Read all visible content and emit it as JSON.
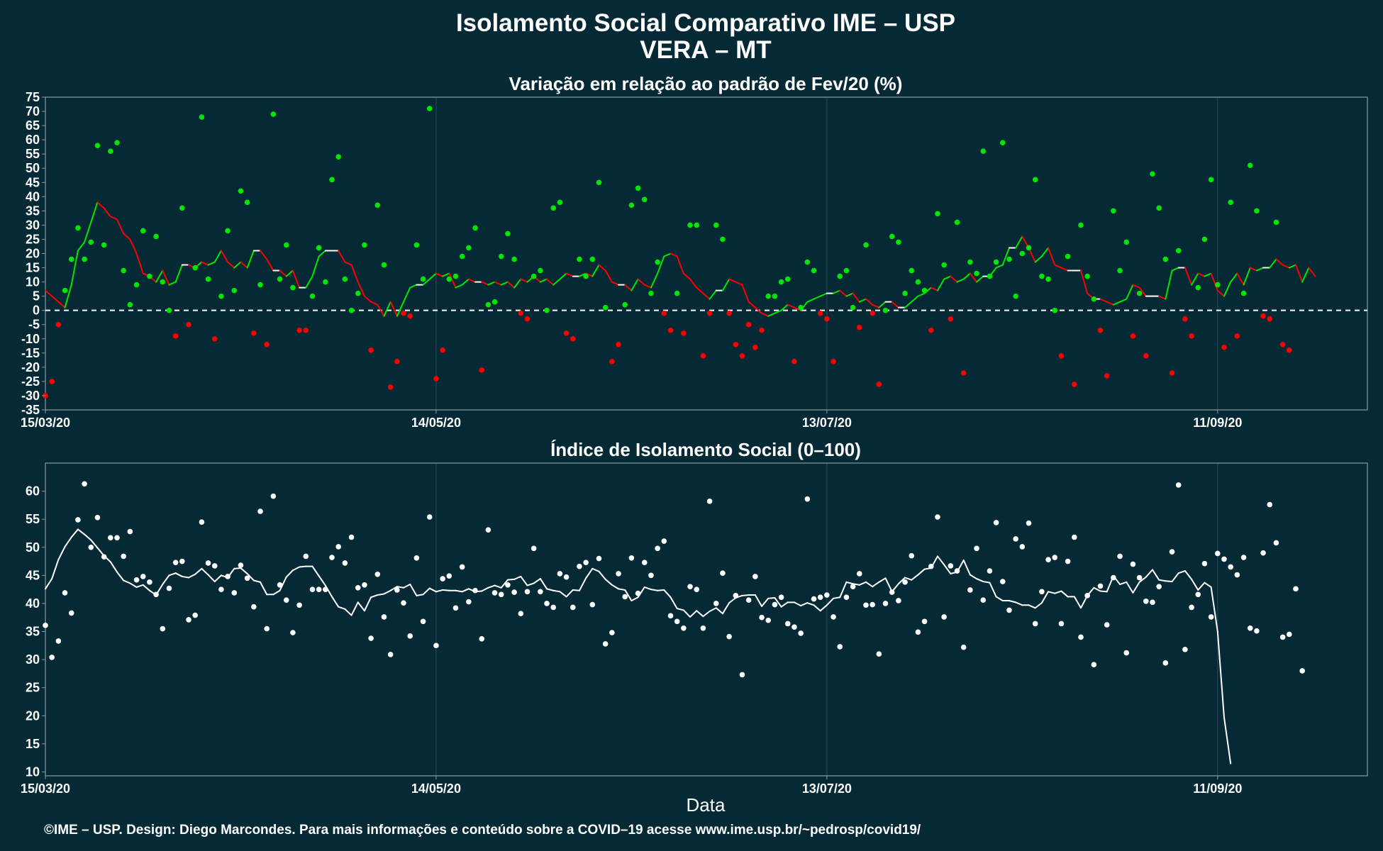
{
  "title": "Isolamento Social Comparativo IME – USP",
  "subtitle": "VERA – MT",
  "footer": "©IME – USP. Design: Diego Marcondes. Para mais informações e conteúdo sobre a COVID–19 acesse www.ime.usp.br/~pedrosp/covid19/",
  "colors": {
    "background": "#052a35",
    "panel_border": "#8a9aa0",
    "grid": "#2c4c56",
    "positive": "#00e600",
    "negative": "#ff0000",
    "neutral": "#ffffff",
    "text": "#ffffff"
  },
  "chart_data": [
    {
      "type": "scatter",
      "title": "Variação em relação ao padrão de Fev/20 (%)",
      "xlabel": "",
      "ylabel": "",
      "x_start": "2020-03-15",
      "x_end": "2020-10-04",
      "ylim": [
        -35,
        75
      ],
      "yticks": [
        -35,
        -30,
        -25,
        -20,
        -15,
        -10,
        -5,
        0,
        5,
        10,
        15,
        20,
        25,
        30,
        35,
        40,
        45,
        50,
        55,
        60,
        65,
        70,
        75
      ],
      "xticks": [
        {
          "label": "15/03/20",
          "date": "2020-03-15"
        },
        {
          "label": "14/05/20",
          "date": "2020-05-14"
        },
        {
          "label": "13/07/20",
          "date": "2020-07-13"
        },
        {
          "label": "11/09/20",
          "date": "2020-09-11"
        }
      ],
      "reference_line": 0,
      "grid": true,
      "series": [
        {
          "kind": "points",
          "values": [
            -30,
            -25,
            -5,
            7,
            18,
            29,
            18,
            24,
            58,
            23,
            56,
            59,
            14,
            2,
            9,
            28,
            12,
            26,
            10,
            0,
            -9,
            36,
            -5,
            15,
            68,
            11,
            -10,
            5,
            28,
            7,
            42,
            38,
            -8,
            9,
            -12,
            69,
            11,
            23,
            8,
            -7,
            -7,
            5,
            22,
            10,
            46,
            54,
            11,
            0,
            6,
            23,
            -14,
            37,
            16,
            -27,
            -18,
            -1,
            -2,
            23,
            11,
            71,
            -24,
            -14,
            11,
            12,
            19,
            22,
            29,
            -21,
            2,
            3,
            19,
            27,
            18,
            -1,
            -3,
            12,
            14,
            0,
            36,
            38,
            -8,
            -10,
            18,
            12,
            18,
            45,
            1,
            -18,
            -12,
            2,
            37,
            43,
            39,
            6,
            17,
            -1,
            -7,
            6,
            -8,
            30,
            30,
            -16,
            -1,
            30,
            25,
            -1,
            -12,
            -16,
            -5,
            -13,
            -7,
            5,
            5,
            10,
            11,
            -18,
            1,
            17,
            14,
            -1,
            -3,
            -18,
            12,
            14,
            1,
            -6,
            23,
            -1,
            -26,
            0,
            26,
            24,
            6,
            14,
            10,
            7,
            -7,
            34,
            16,
            -3,
            31,
            -22,
            17,
            13,
            56,
            12,
            17,
            59,
            18,
            5,
            20,
            22,
            46,
            12,
            11,
            0,
            -16,
            19,
            -26,
            30,
            12,
            4,
            -7,
            -23,
            35,
            14,
            24,
            -9,
            6,
            -16,
            48,
            36,
            18,
            -22,
            21,
            -3,
            -9,
            8,
            25,
            46,
            9,
            -13,
            38,
            -9,
            6,
            51,
            35,
            -2,
            -3,
            31,
            -12,
            -14
          ]
        },
        {
          "kind": "moving_average",
          "values": [
            7,
            5,
            3,
            1,
            9,
            21,
            24,
            31,
            38,
            36,
            33,
            32,
            27,
            25,
            20,
            13,
            12,
            10,
            14,
            9,
            10,
            16,
            16,
            15,
            17,
            16,
            17,
            21,
            17,
            15,
            17,
            15,
            21,
            21,
            18,
            14,
            14,
            12,
            14,
            8,
            8,
            12,
            19,
            21,
            21,
            21,
            17,
            16,
            10,
            5,
            3,
            2,
            -2,
            3,
            -2,
            3,
            8,
            9,
            9,
            11,
            13,
            12,
            13,
            8,
            9,
            11,
            10,
            10,
            9,
            10,
            9,
            10,
            8,
            11,
            10,
            12,
            10,
            11,
            9,
            11,
            13,
            12,
            12,
            13,
            12,
            16,
            14,
            10,
            9,
            9,
            7,
            11,
            9,
            8,
            13,
            19,
            20,
            19,
            13,
            11,
            8,
            6,
            4,
            7,
            7,
            11,
            10,
            9,
            3,
            1,
            -1,
            -2,
            -1,
            0,
            2,
            1,
            0,
            3,
            4,
            5,
            6,
            6,
            7,
            5,
            6,
            3,
            4,
            2,
            1,
            3,
            3,
            1,
            1,
            3,
            5,
            6,
            8,
            7,
            11,
            12,
            10,
            11,
            13,
            10,
            12,
            12,
            15,
            16,
            22,
            22,
            26,
            22,
            17,
            19,
            22,
            16,
            15,
            14,
            14,
            14,
            6,
            4,
            4,
            3,
            2,
            3,
            4,
            9,
            8,
            5,
            5,
            5,
            4,
            14,
            15,
            15,
            9,
            13,
            12,
            13,
            7,
            5,
            10,
            13,
            9,
            15,
            14,
            15,
            15,
            18,
            16,
            15,
            16,
            10,
            15,
            12
          ]
        }
      ]
    },
    {
      "type": "scatter",
      "title": "Índice de Isolamento Social (0–100)",
      "xlabel": "Data",
      "ylabel": "",
      "x_start": "2020-03-15",
      "x_end": "2020-10-04",
      "ylim": [
        9.3,
        65
      ],
      "yticks": [
        10,
        15,
        20,
        25,
        30,
        35,
        40,
        45,
        50,
        55,
        60
      ],
      "xticks": [
        {
          "label": "15/03/20",
          "date": "2020-03-15"
        },
        {
          "label": "14/05/20",
          "date": "2020-05-14"
        },
        {
          "label": "13/07/20",
          "date": "2020-07-13"
        },
        {
          "label": "11/09/20",
          "date": "2020-09-11"
        }
      ],
      "grid": true,
      "series": [
        {
          "kind": "points",
          "values": [
            36.1,
            30.4,
            33.3,
            41.9,
            38.3,
            54.9,
            61.3,
            50,
            55.3,
            48.3,
            51.7,
            51.7,
            48.4,
            52.8,
            44.2,
            44.8,
            43.8,
            41.6,
            35.5,
            42.7,
            47.3,
            47.5,
            37.1,
            37.9,
            54.5,
            47.2,
            46.7,
            42.5,
            44.8,
            41.9,
            46.8,
            44.5,
            39.4,
            56.4,
            35.5,
            59.1,
            43.3,
            40.6,
            34.8,
            39.7,
            48.4,
            42.5,
            42.5,
            42.5,
            48.2,
            50.1,
            47.2,
            51.8,
            42.8,
            43.3,
            33.8,
            45.2,
            37.6,
            30.9,
            42.4,
            40.1,
            34.2,
            48.1,
            36.8,
            55.4,
            32.5,
            44.4,
            44.9,
            39.2,
            46.5,
            40.3,
            42.3,
            33.7,
            53.1,
            41.9,
            41.6,
            43.3,
            42,
            38.2,
            42.1,
            49.8,
            42.1,
            40,
            39.3,
            45.3,
            44.7,
            39.3,
            46.6,
            47.3,
            39.8,
            48,
            32.8,
            34.8,
            45.3,
            41.2,
            48.1,
            41.8,
            47.3,
            45,
            49.8,
            51.1,
            37.8,
            36.8,
            35.6,
            43,
            42.5,
            35.6,
            58.2,
            40,
            45.4,
            34.1,
            41.4,
            27.3,
            40.6,
            44.8,
            37.5,
            37,
            39.8,
            41.1,
            36.4,
            35.8,
            34.7,
            58.6,
            40.8,
            41.1,
            41.5,
            37.6,
            32.3,
            41.1,
            43,
            45.3,
            39.7,
            39.8,
            31,
            40,
            42,
            40.5,
            43.8,
            48.5,
            34.9,
            36.8,
            46.6,
            55.4,
            37.6,
            46.7,
            45.8,
            32.2,
            42.4,
            49.8,
            40.6,
            45.8,
            54.4,
            43.9,
            38.8,
            51.5,
            50.1,
            54.3,
            36.4,
            42.1,
            47.8,
            48.2,
            36.4,
            47.5,
            51.8,
            34,
            41.4,
            29.1,
            43.1,
            36.2,
            44.6,
            48.4,
            31.2,
            47,
            44.6,
            40.4,
            40.2,
            43,
            29.4,
            49.2,
            61.1,
            31.8,
            39.3,
            41.6,
            47.1,
            37.6,
            48.9,
            47.9,
            46.5,
            45.1,
            48.2,
            35.6,
            35.1,
            49,
            57.6,
            50.8,
            34,
            34.5,
            42.6,
            28
          ]
        },
        {
          "kind": "moving_average",
          "values": [
            42.6,
            44.4,
            47.8,
            50.1,
            51.8,
            53.2,
            52.3,
            51.3,
            49.9,
            48.5,
            47.4,
            45.6,
            44.1,
            43.6,
            42.9,
            43.3,
            42.3,
            41.5,
            43.4,
            45,
            45.4,
            44.8,
            44.6,
            45.2,
            46.2,
            45.1,
            43.9,
            45,
            44.6,
            46.2,
            46.3,
            45.3,
            44.1,
            43.8,
            41.6,
            41.6,
            42.3,
            44.7,
            45.9,
            46.5,
            46.6,
            46.6,
            44.9,
            43.2,
            41.2,
            39.4,
            39,
            37.9,
            40.2,
            38.7,
            41.1,
            41.5,
            41.7,
            42.3,
            43,
            42.8,
            43.4,
            41.4,
            41.6,
            42.7,
            42.1,
            42.4,
            42.3,
            42.3,
            42.1,
            42.6,
            42.1,
            42.2,
            42.8,
            43.2,
            42.8,
            44.2,
            44.3,
            44.8,
            43.2,
            43.6,
            44.4,
            42.6,
            42.3,
            42.1,
            41.2,
            42.4,
            42.3,
            44.5,
            46.2,
            45.7,
            44.3,
            43.3,
            42.6,
            42.4,
            40.5,
            41.1,
            42.9,
            42.5,
            42.3,
            42.4,
            41.1,
            39.1,
            38.8,
            37.6,
            38.7,
            37.7,
            38.6,
            39.2,
            38.2,
            40.1,
            41,
            41.4,
            41.5,
            41.5,
            39.5,
            40.9,
            41,
            39.4,
            40.2,
            40.2,
            39.6,
            40.1,
            39.7,
            38.7,
            39.7,
            40.9,
            41.1,
            43.8,
            43.5,
            43.3,
            43.8,
            43,
            43.8,
            44.5,
            42.1,
            43.5,
            44.6,
            44.2,
            45.1,
            46.1,
            46.3,
            48.4,
            46.9,
            45.3,
            45.6,
            47.7,
            45.1,
            44.4,
            43.9,
            43.7,
            41.2,
            40.5,
            40.5,
            40.2,
            39.7,
            39.7,
            39.2,
            40.1,
            42.1,
            41.8,
            42.2,
            41.2,
            41.2,
            39.2,
            41.4,
            42.8,
            42.2,
            42.1,
            44.9,
            43.4,
            43.8,
            41.9,
            43.8,
            44.7,
            46,
            44.2,
            44,
            43.9,
            45.4,
            45.8,
            44.3,
            42.4,
            43.7,
            42.9,
            35,
            19.7,
            11.5
          ]
        }
      ]
    }
  ]
}
